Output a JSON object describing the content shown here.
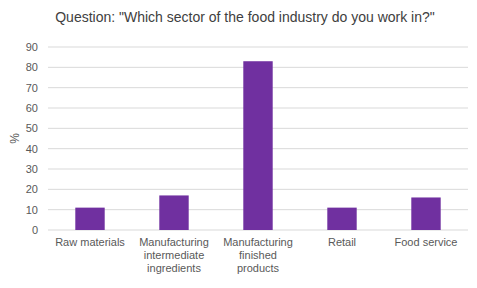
{
  "chart_data": {
    "type": "bar",
    "title": "Question: \"Which sector of the food industry do you work in?\"",
    "y_label": "%",
    "categories": [
      "Raw materials",
      "Manufacturing intermediate ingredients",
      "Manufacturing finished products",
      "Retail",
      "Food service"
    ],
    "values": [
      11,
      17,
      83,
      11,
      16
    ],
    "color": "#7030a0",
    "ylim": [
      0,
      90
    ],
    "yticks": [
      0,
      10,
      20,
      30,
      40,
      50,
      60,
      70,
      80,
      90
    ],
    "grid": true
  }
}
